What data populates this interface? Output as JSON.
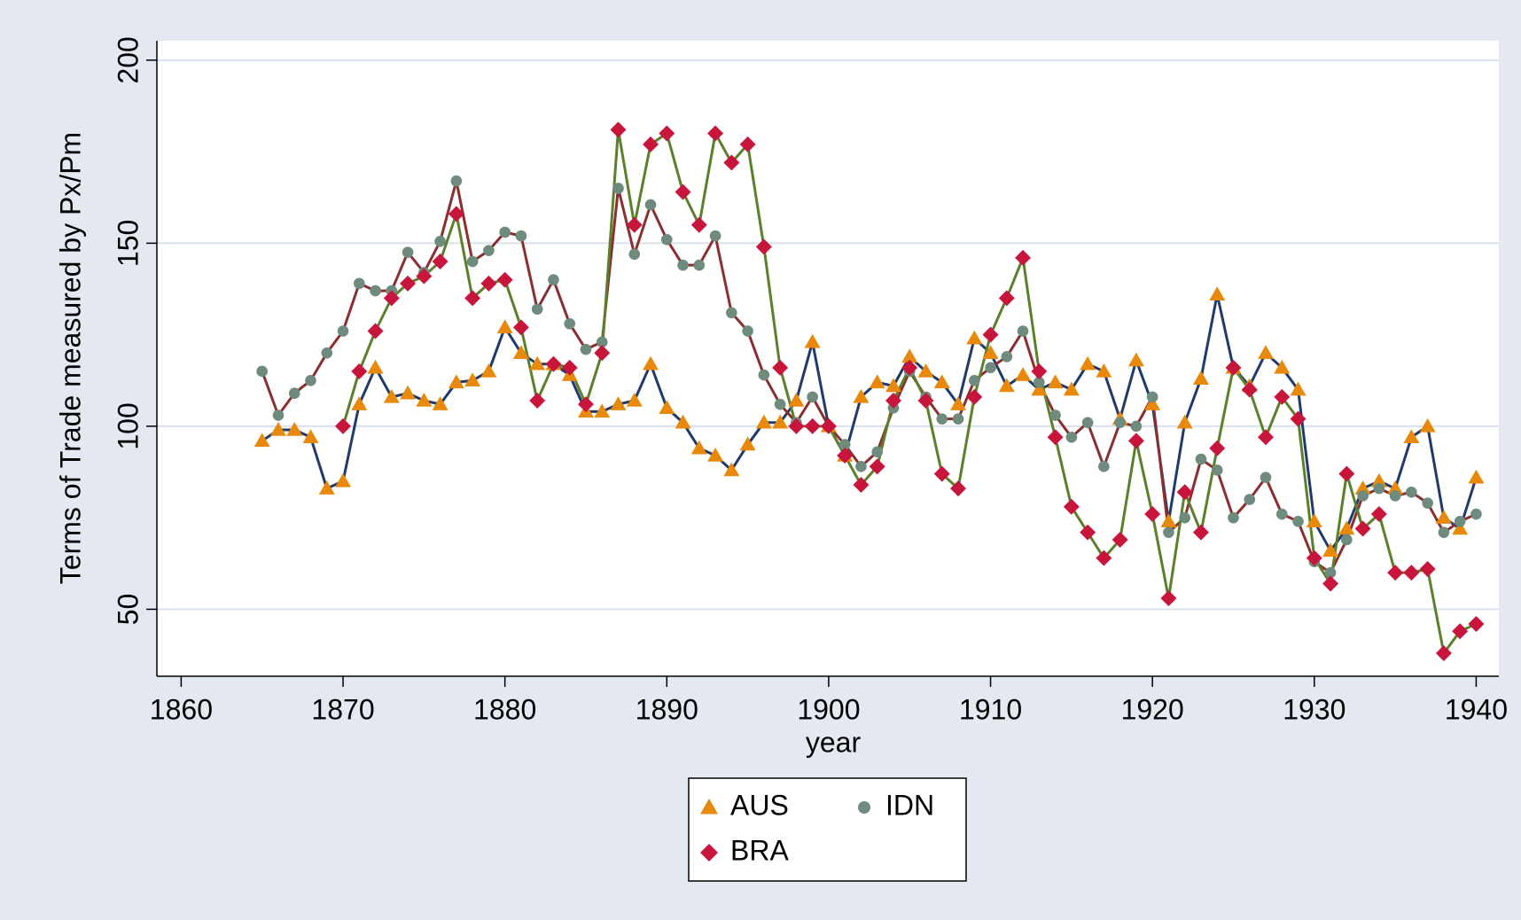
{
  "chart_data": {
    "type": "line",
    "x_label": "year",
    "y_label": "Terms of Trade measured by Px/Pm",
    "xlim": [
      1858.5,
      1941.4
    ],
    "xticks": [
      1860,
      1870,
      1880,
      1890,
      1900,
      1910,
      1920,
      1930,
      1940
    ],
    "ylim": [
      31.7,
      205.3
    ],
    "yticks": [
      50,
      100,
      150,
      200
    ],
    "grid": true,
    "legend": "bottom",
    "x": [
      1865,
      1866,
      1867,
      1868,
      1869,
      1870,
      1871,
      1872,
      1873,
      1874,
      1875,
      1876,
      1877,
      1878,
      1879,
      1880,
      1881,
      1882,
      1883,
      1884,
      1885,
      1886,
      1887,
      1888,
      1889,
      1890,
      1891,
      1892,
      1893,
      1894,
      1895,
      1896,
      1897,
      1898,
      1899,
      1900,
      1901,
      1902,
      1903,
      1904,
      1905,
      1906,
      1907,
      1908,
      1909,
      1910,
      1911,
      1912,
      1913,
      1914,
      1915,
      1916,
      1917,
      1918,
      1919,
      1920,
      1921,
      1922,
      1923,
      1924,
      1925,
      1926,
      1927,
      1928,
      1929,
      1930,
      1931,
      1932,
      1933,
      1934,
      1935,
      1936,
      1937,
      1938,
      1939,
      1940
    ],
    "series": [
      {
        "name": "AUS",
        "color": "#e8890c",
        "line_color": "#1f3a6b",
        "marker": "triangle",
        "values": [
          96,
          99,
          99,
          97,
          83,
          85,
          106,
          116,
          108,
          109,
          107,
          106,
          112,
          112.5,
          115,
          127,
          120,
          117,
          117,
          114,
          104,
          104,
          106,
          107,
          117,
          105,
          101,
          94,
          92,
          88,
          95,
          101,
          101,
          107,
          123,
          100,
          92,
          108,
          112,
          111,
          119,
          115,
          112,
          106,
          124,
          120,
          111,
          114,
          110,
          112,
          110,
          117,
          115,
          102,
          118,
          106,
          74,
          101,
          113,
          136,
          116,
          111,
          120,
          116,
          110,
          74,
          66,
          72,
          83,
          85,
          83,
          97,
          100,
          75,
          72,
          86
        ]
      },
      {
        "name": "IDN",
        "color": "#6e8b7d",
        "line_color": "#8b2e2e",
        "marker": "circle",
        "values": [
          115,
          103,
          109,
          112.5,
          120,
          126,
          139,
          137,
          137,
          147.5,
          142,
          150.5,
          167,
          145,
          148,
          153,
          152,
          132,
          140,
          128,
          121,
          123,
          165,
          147,
          160.5,
          151,
          144,
          144,
          152,
          131,
          126,
          114,
          106,
          101,
          108,
          100,
          95,
          89,
          93,
          105,
          115,
          108,
          102,
          102,
          112.5,
          116,
          119,
          126,
          112,
          103,
          97,
          101,
          89,
          101,
          100,
          108,
          71,
          75,
          91,
          88,
          75,
          80,
          86,
          76,
          74,
          63,
          60,
          69,
          81,
          83,
          81,
          82,
          79,
          71,
          74,
          76
        ]
      },
      {
        "name": "BRA",
        "color": "#c8153c",
        "line_color": "#5b7f2b",
        "marker": "diamond",
        "values": [
          null,
          null,
          null,
          null,
          null,
          100,
          115,
          126,
          135,
          139,
          141,
          145,
          158,
          135,
          139,
          140,
          127,
          107,
          117,
          116,
          106,
          120,
          181,
          155,
          177,
          180,
          164,
          155,
          180,
          172,
          177,
          149,
          116,
          100,
          100,
          100,
          92,
          84,
          89,
          107,
          116,
          107,
          87,
          83,
          108,
          125,
          135,
          146,
          115,
          97,
          78,
          71,
          64,
          69,
          96,
          76,
          53,
          82,
          71,
          94,
          116,
          110,
          97,
          108,
          102,
          64,
          57,
          87,
          72,
          76,
          60,
          60,
          61,
          38,
          44,
          46
        ]
      }
    ]
  }
}
